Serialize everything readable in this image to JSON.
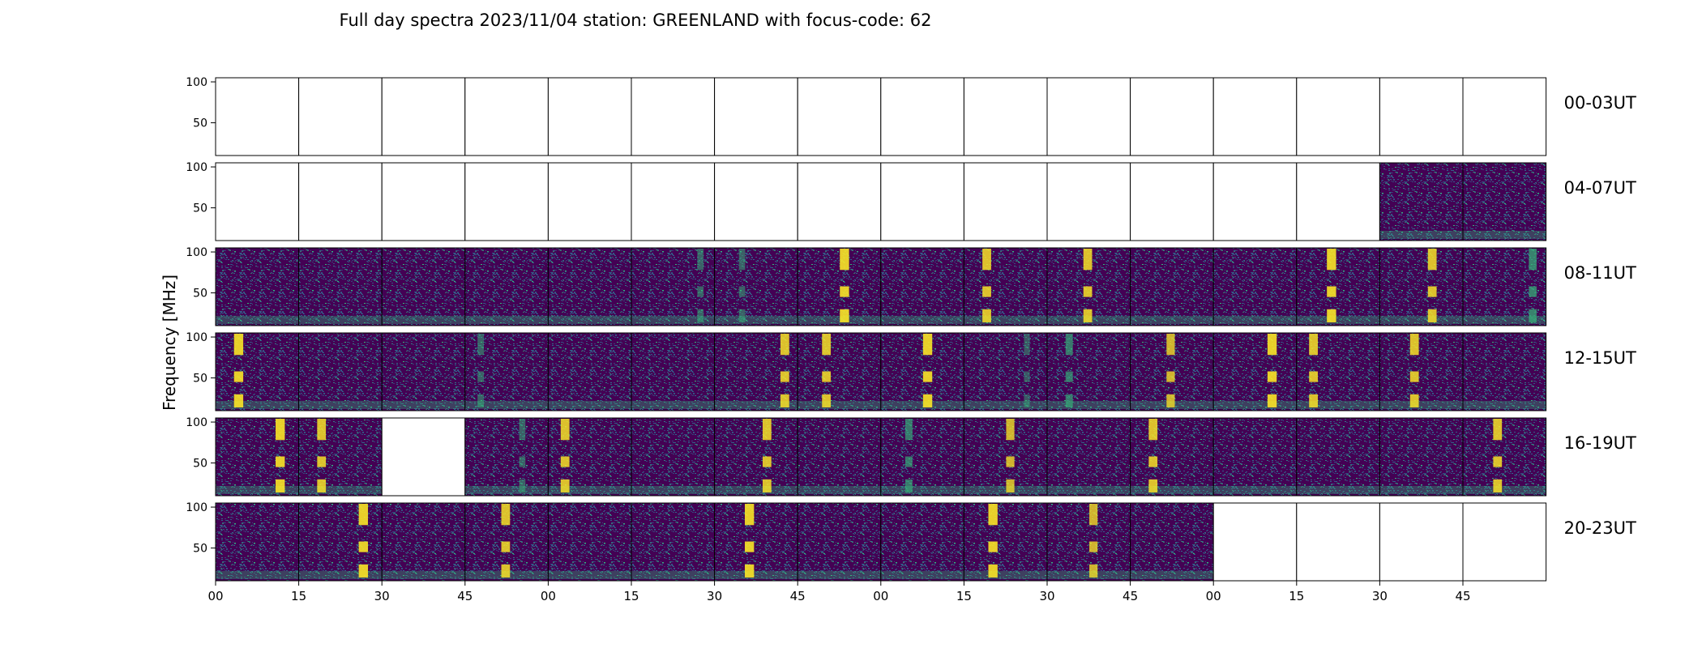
{
  "chart_data": {
    "type": "heatmap",
    "title": "Full day spectra 2023/11/04 station: GREENLAND with focus-code: 62",
    "ylabel": "Frequency [MHz]",
    "xlabel": "",
    "yticks": [
      "100",
      "50"
    ],
    "ylim": [
      10,
      105
    ],
    "xticks": [
      "00",
      "15",
      "30",
      "45",
      "00",
      "15",
      "30",
      "45",
      "00",
      "15",
      "30",
      "45",
      "00",
      "15",
      "30",
      "45"
    ],
    "colormap": "viridis",
    "colors": {
      "background": "#440154",
      "mid": "#31688e",
      "bright": "#35b779",
      "burst": "#fde725"
    },
    "row_labels": [
      "00-03UT",
      "04-07UT",
      "08-11UT",
      "12-15UT",
      "16-19UT",
      "20-23UT"
    ],
    "panels_per_row": 16,
    "panel_minutes": 15,
    "data_present": [
      [
        0,
        0,
        0,
        0,
        0,
        0,
        0,
        0,
        0,
        0,
        0,
        0,
        0,
        0,
        0,
        0
      ],
      [
        0,
        0,
        0,
        0,
        0,
        0,
        0,
        0,
        0,
        0,
        0,
        0,
        0,
        0,
        1,
        1
      ],
      [
        1,
        1,
        1,
        1,
        1,
        1,
        1,
        1,
        1,
        1,
        1,
        1,
        1,
        1,
        1,
        1
      ],
      [
        1,
        1,
        1,
        1,
        1,
        1,
        1,
        1,
        1,
        1,
        1,
        1,
        1,
        1,
        1,
        1
      ],
      [
        1,
        1,
        0,
        1,
        1,
        1,
        1,
        1,
        1,
        1,
        1,
        1,
        1,
        1,
        1,
        1
      ],
      [
        1,
        1,
        1,
        1,
        1,
        1,
        1,
        1,
        1,
        1,
        1,
        1,
        0,
        0,
        0,
        0
      ]
    ],
    "burst_intensity": [
      [
        0,
        0,
        0,
        0,
        0,
        0,
        0,
        0,
        0,
        0,
        0,
        0,
        0,
        0,
        0,
        0
      ],
      [
        0,
        0,
        0,
        0,
        0,
        0,
        0,
        0,
        0,
        0,
        0,
        0,
        0,
        0,
        0,
        0
      ],
      [
        0,
        0,
        0,
        0,
        0,
        0.3,
        0.3,
        0.9,
        0,
        0.8,
        0.8,
        0,
        0,
        0.9,
        0.8,
        0.6
      ],
      [
        0.9,
        0,
        0,
        0.3,
        0,
        0,
        0.8,
        0.8,
        0.9,
        0.2,
        0.5,
        0.7,
        0.9,
        0.8,
        0.8,
        0
      ],
      [
        0.9,
        0.8,
        0,
        0.3,
        0.8,
        0,
        0.8,
        0,
        0.5,
        0.7,
        0,
        0.8,
        0,
        0,
        0,
        0.8
      ],
      [
        0,
        0.9,
        0,
        0.8,
        0,
        0,
        0.9,
        0,
        0,
        0.9,
        0.7,
        0,
        0,
        0,
        0,
        0
      ]
    ]
  }
}
